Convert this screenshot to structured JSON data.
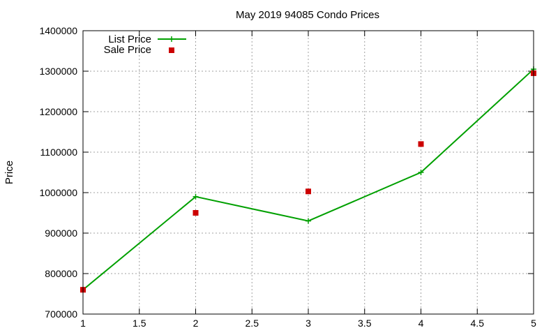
{
  "chart_data": {
    "type": "line",
    "title": "May 2019 94085 Condo Prices",
    "xlabel": "",
    "ylabel": "Price",
    "xlim": [
      1,
      5
    ],
    "ylim": [
      700000,
      1400000
    ],
    "x_ticks": [
      1,
      1.5,
      2,
      2.5,
      3,
      3.5,
      4,
      4.5,
      5
    ],
    "x_tick_labels": [
      "1",
      "1.5",
      "2",
      "2.5",
      "3",
      "3.5",
      "4",
      "4.5",
      "5"
    ],
    "y_ticks": [
      700000,
      800000,
      900000,
      1000000,
      1100000,
      1200000,
      1300000,
      1400000
    ],
    "y_tick_labels": [
      "700000",
      "800000",
      "900000",
      "1000000",
      "1100000",
      "1200000",
      "1300000",
      "1400000"
    ],
    "grid": true,
    "legend_position": "top-left",
    "series": [
      {
        "name": "List Price",
        "style": "line-plus",
        "color": "#00a000",
        "x": [
          1,
          2,
          3,
          4,
          5
        ],
        "y": [
          760000,
          990000,
          930000,
          1050000,
          1305000
        ]
      },
      {
        "name": "Sale Price",
        "style": "square-points",
        "color": "#cc0000",
        "x": [
          1,
          2,
          3,
          4,
          5
        ],
        "y": [
          760000,
          950000,
          1003000,
          1120000,
          1295000
        ]
      }
    ]
  }
}
